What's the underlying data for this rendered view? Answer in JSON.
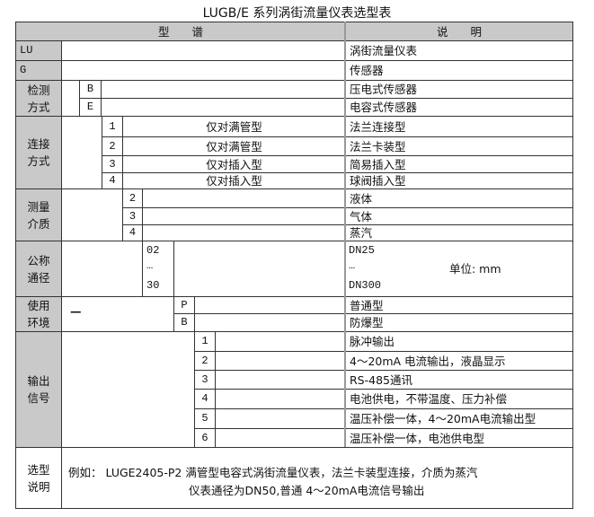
{
  "title": "LUGB/E 系列涡街流量仪表选型表",
  "header": {
    "model": "型　　谱",
    "desc": "说　　明"
  },
  "rows": {
    "lu": {
      "code": "LU",
      "desc": "涡街流量仪表"
    },
    "g": {
      "code": "G",
      "desc": "传感器"
    }
  },
  "sections": {
    "detect": {
      "label": "检测\n方式",
      "items": [
        {
          "code": "B",
          "desc": "压电式传感器"
        },
        {
          "code": "E",
          "desc": "电容式传感器"
        }
      ]
    },
    "connect": {
      "label": "连接\n方式",
      "items": [
        {
          "code": "1",
          "note": "仅对满管型",
          "desc": "法兰连接型"
        },
        {
          "code": "2",
          "note": "仅对满管型",
          "desc": "法兰卡装型"
        },
        {
          "code": "3",
          "note": "仅对插入型",
          "desc": "简易插入型"
        },
        {
          "code": "4",
          "note": "仅对插入型",
          "desc": "球阀插入型"
        }
      ]
    },
    "medium": {
      "label": "测量\n介质",
      "items": [
        {
          "code": "2",
          "desc": "液体"
        },
        {
          "code": "3",
          "desc": "气体"
        },
        {
          "code": "4",
          "desc": "蒸汽"
        }
      ]
    },
    "diameter": {
      "label": "公称\n通径",
      "codes": [
        "02",
        "…",
        "30"
      ],
      "descs": [
        "DN25",
        "…",
        "DN300"
      ],
      "unit": "单位: mm"
    },
    "env": {
      "label": "使用\n环境",
      "dash": "—",
      "items": [
        {
          "code": "P",
          "desc": "普通型"
        },
        {
          "code": "B",
          "desc": "防爆型"
        }
      ]
    },
    "output": {
      "label": "输出\n信号",
      "items": [
        {
          "code": "1",
          "desc": "脉冲输出"
        },
        {
          "code": "2",
          "desc": "4～20mA 电流输出，液晶显示"
        },
        {
          "code": "3",
          "desc": "RS-485通讯"
        },
        {
          "code": "4",
          "desc": "电池供电，不带温度、压力补偿"
        },
        {
          "code": "5",
          "desc": "温压补偿一体，4～20mA电流输出型"
        },
        {
          "code": "6",
          "desc": "温压补偿一体，电池供电型"
        }
      ]
    },
    "example": {
      "label": "选型\n说明",
      "line1": "例如：  LUGE2405-P2 满管型电容式涡街流量仪表，法兰卡装型连接，介质为蒸汽",
      "line2": "仪表通径为DN50,普通 4～20mA电流信号输出"
    }
  }
}
